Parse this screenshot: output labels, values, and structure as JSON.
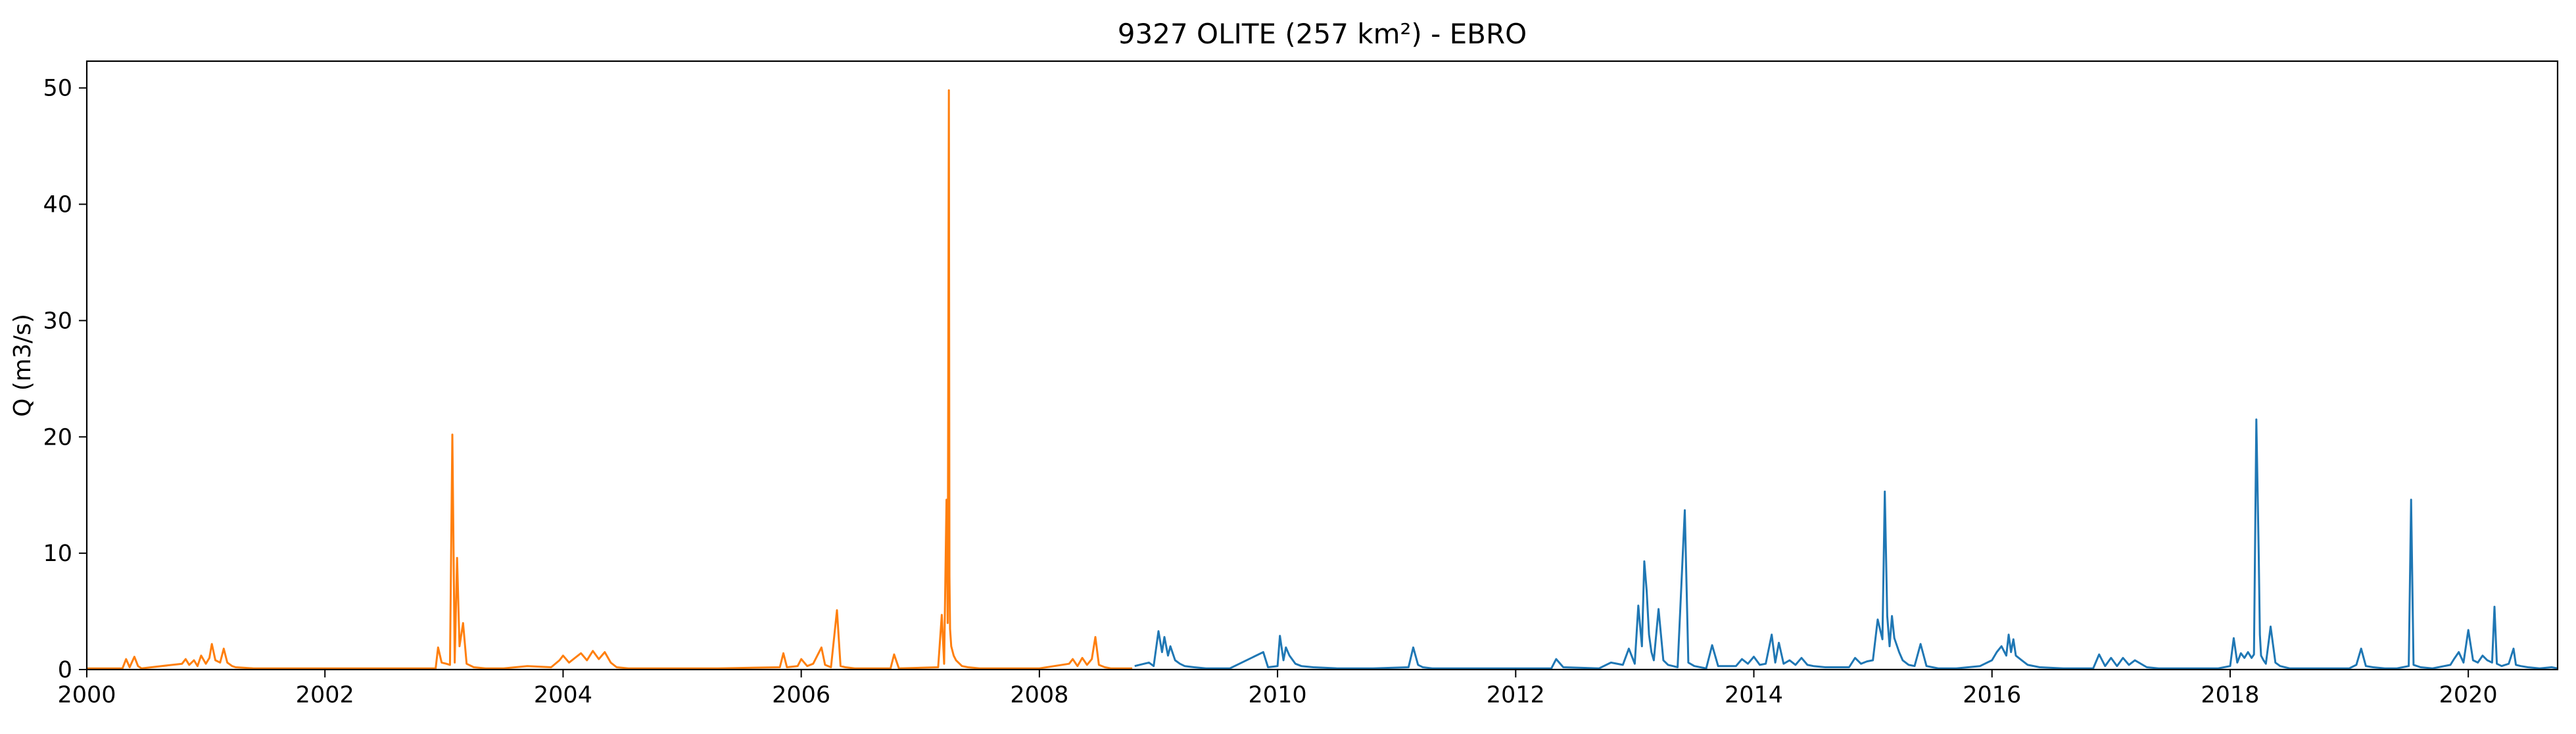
{
  "chart_data": {
    "type": "line",
    "title": "9327 OLITE (257 km²) - EBRO",
    "xlabel": "",
    "ylabel": "Q (m3/s)",
    "xlim": [
      2000.0,
      2020.75
    ],
    "ylim": [
      0,
      52.3
    ],
    "grid": false,
    "legend": "none",
    "x_ticks": [
      {
        "value": 2000,
        "label": "2000"
      },
      {
        "value": 2002,
        "label": "2002"
      },
      {
        "value": 2004,
        "label": "2004"
      },
      {
        "value": 2006,
        "label": "2006"
      },
      {
        "value": 2008,
        "label": "2008"
      },
      {
        "value": 2010,
        "label": "2010"
      },
      {
        "value": 2012,
        "label": "2012"
      },
      {
        "value": 2014,
        "label": "2014"
      },
      {
        "value": 2016,
        "label": "2016"
      },
      {
        "value": 2018,
        "label": "2018"
      },
      {
        "value": 2020,
        "label": "2020"
      }
    ],
    "y_ticks": [
      {
        "value": 0,
        "label": "0"
      },
      {
        "value": 10,
        "label": "10"
      },
      {
        "value": 20,
        "label": "20"
      },
      {
        "value": 30,
        "label": "30"
      },
      {
        "value": 40,
        "label": "40"
      },
      {
        "value": 50,
        "label": "50"
      }
    ],
    "series": [
      {
        "color": "#ff7f0e",
        "x": [
          2000.0,
          2000.3,
          2000.33,
          2000.36,
          2000.4,
          2000.43,
          2000.46,
          2000.8,
          2000.83,
          2000.86,
          2000.9,
          2000.93,
          2000.96,
          2001.0,
          2001.03,
          2001.05,
          2001.08,
          2001.12,
          2001.15,
          2001.18,
          2001.22,
          2001.25,
          2001.4,
          2001.8,
          2002.4,
          2002.93,
          2002.95,
          2002.98,
          2003.02,
          2003.05,
          2003.07,
          2003.09,
          2003.11,
          2003.13,
          2003.16,
          2003.19,
          2003.25,
          2003.35,
          2003.5,
          2003.7,
          2003.9,
          2003.97,
          2004.0,
          2004.05,
          2004.1,
          2004.15,
          2004.2,
          2004.25,
          2004.3,
          2004.35,
          2004.4,
          2004.45,
          2004.55,
          2005.0,
          2005.3,
          2005.82,
          2005.85,
          2005.88,
          2005.97,
          2006.0,
          2006.05,
          2006.1,
          2006.17,
          2006.2,
          2006.25,
          2006.3,
          2006.33,
          2006.37,
          2006.45,
          2006.6,
          2006.75,
          2006.78,
          2006.82,
          2007.15,
          2007.18,
          2007.2,
          2007.22,
          2007.23,
          2007.24,
          2007.245,
          2007.25,
          2007.26,
          2007.28,
          2007.3,
          2007.35,
          2007.4,
          2007.5,
          2007.6,
          2007.8,
          2008.0,
          2008.25,
          2008.28,
          2008.32,
          2008.36,
          2008.4,
          2008.44,
          2008.47,
          2008.5,
          2008.55,
          2008.6,
          2008.7,
          2008.78
        ],
        "y": [
          0.1,
          0.1,
          0.9,
          0.2,
          1.1,
          0.3,
          0.1,
          0.5,
          0.9,
          0.4,
          0.8,
          0.3,
          1.2,
          0.5,
          1.0,
          2.2,
          0.8,
          0.6,
          1.8,
          0.6,
          0.3,
          0.2,
          0.1,
          0.1,
          0.1,
          0.1,
          1.9,
          0.6,
          0.5,
          0.4,
          20.2,
          0.6,
          9.6,
          2.0,
          4.0,
          0.5,
          0.2,
          0.1,
          0.1,
          0.3,
          0.2,
          0.8,
          1.2,
          0.6,
          1.0,
          1.4,
          0.8,
          1.6,
          0.9,
          1.5,
          0.6,
          0.2,
          0.1,
          0.1,
          0.1,
          0.2,
          1.4,
          0.2,
          0.3,
          0.9,
          0.3,
          0.5,
          1.9,
          0.4,
          0.2,
          5.1,
          0.3,
          0.2,
          0.1,
          0.1,
          0.1,
          1.3,
          0.1,
          0.2,
          4.7,
          0.5,
          14.6,
          4.0,
          49.8,
          8.0,
          3.5,
          2.0,
          1.2,
          0.8,
          0.3,
          0.2,
          0.1,
          0.1,
          0.1,
          0.1,
          0.5,
          0.9,
          0.3,
          1.0,
          0.4,
          0.9,
          2.8,
          0.4,
          0.2,
          0.1,
          0.1,
          0.1
        ]
      },
      {
        "color": "#1f77b4",
        "x": [
          2008.8,
          2008.88,
          2008.92,
          2008.96,
          2009.0,
          2009.03,
          2009.05,
          2009.08,
          2009.1,
          2009.14,
          2009.18,
          2009.22,
          2009.3,
          2009.4,
          2009.6,
          2009.88,
          2009.92,
          2010.0,
          2010.02,
          2010.05,
          2010.07,
          2010.1,
          2010.15,
          2010.2,
          2010.3,
          2010.5,
          2010.8,
          2011.1,
          2011.14,
          2011.18,
          2011.22,
          2011.3,
          2011.8,
          2012.3,
          2012.34,
          2012.4,
          2012.7,
          2012.8,
          2012.9,
          2012.95,
          2013.0,
          2013.03,
          2013.06,
          2013.08,
          2013.1,
          2013.12,
          2013.14,
          2013.16,
          2013.2,
          2013.24,
          2013.28,
          2013.32,
          2013.36,
          2013.42,
          2013.45,
          2013.5,
          2013.6,
          2013.65,
          2013.7,
          2013.85,
          2013.9,
          2013.95,
          2014.0,
          2014.05,
          2014.1,
          2014.15,
          2014.18,
          2014.21,
          2014.25,
          2014.3,
          2014.35,
          2014.4,
          2014.45,
          2014.5,
          2014.6,
          2014.8,
          2014.85,
          2014.9,
          2014.95,
          2015.0,
          2015.04,
          2015.08,
          2015.1,
          2015.12,
          2015.14,
          2015.16,
          2015.18,
          2015.22,
          2015.25,
          2015.3,
          2015.35,
          2015.4,
          2015.45,
          2015.5,
          2015.55,
          2015.7,
          2015.8,
          2015.9,
          2016.0,
          2016.04,
          2016.08,
          2016.12,
          2016.14,
          2016.16,
          2016.18,
          2016.2,
          2016.25,
          2016.3,
          2016.4,
          2016.6,
          2016.85,
          2016.9,
          2016.95,
          2017.0,
          2017.05,
          2017.1,
          2017.15,
          2017.2,
          2017.3,
          2017.4,
          2017.6,
          2017.9,
          2018.0,
          2018.03,
          2018.06,
          2018.09,
          2018.12,
          2018.15,
          2018.18,
          2018.2,
          2018.22,
          2018.24,
          2018.25,
          2018.26,
          2018.28,
          2018.3,
          2018.34,
          2018.38,
          2018.42,
          2018.46,
          2018.5,
          2018.6,
          2018.8,
          2019.0,
          2019.06,
          2019.1,
          2019.14,
          2019.2,
          2019.3,
          2019.4,
          2019.5,
          2019.52,
          2019.54,
          2019.6,
          2019.7,
          2019.85,
          2019.88,
          2019.92,
          2019.96,
          2020.0,
          2020.04,
          2020.08,
          2020.12,
          2020.16,
          2020.2,
          2020.22,
          2020.24,
          2020.28,
          2020.34,
          2020.38,
          2020.4,
          2020.44,
          2020.5,
          2020.6,
          2020.7,
          2020.75
        ],
        "y": [
          0.3,
          0.5,
          0.6,
          0.3,
          3.3,
          1.5,
          2.8,
          1.2,
          2.0,
          0.8,
          0.5,
          0.3,
          0.2,
          0.1,
          0.1,
          1.5,
          0.2,
          0.3,
          2.9,
          0.8,
          1.9,
          1.2,
          0.5,
          0.3,
          0.2,
          0.1,
          0.1,
          0.2,
          1.9,
          0.4,
          0.2,
          0.1,
          0.1,
          0.1,
          0.9,
          0.2,
          0.1,
          0.6,
          0.4,
          1.8,
          0.5,
          5.5,
          2.0,
          9.3,
          6.8,
          3.0,
          1.5,
          0.8,
          5.2,
          0.8,
          0.4,
          0.3,
          0.2,
          13.7,
          0.6,
          0.3,
          0.1,
          2.1,
          0.3,
          0.3,
          0.9,
          0.5,
          1.1,
          0.4,
          0.5,
          3.0,
          0.6,
          2.3,
          0.5,
          0.8,
          0.4,
          1.0,
          0.4,
          0.3,
          0.2,
          0.2,
          1.0,
          0.5,
          0.7,
          0.8,
          4.3,
          2.6,
          15.3,
          4.6,
          2.0,
          4.6,
          2.7,
          1.5,
          0.8,
          0.4,
          0.3,
          2.2,
          0.3,
          0.2,
          0.1,
          0.1,
          0.2,
          0.3,
          0.8,
          1.5,
          2.0,
          1.2,
          3.0,
          1.5,
          2.6,
          1.2,
          0.8,
          0.4,
          0.2,
          0.1,
          0.1,
          1.3,
          0.3,
          1.0,
          0.3,
          1.0,
          0.4,
          0.8,
          0.2,
          0.1,
          0.1,
          0.1,
          0.3,
          2.7,
          0.6,
          1.4,
          1.0,
          1.5,
          1.0,
          1.3,
          21.5,
          10.0,
          3.0,
          1.2,
          0.8,
          0.5,
          3.7,
          0.6,
          0.3,
          0.2,
          0.1,
          0.1,
          0.1,
          0.1,
          0.4,
          1.8,
          0.3,
          0.2,
          0.1,
          0.1,
          0.3,
          14.6,
          0.4,
          0.2,
          0.1,
          0.4,
          0.9,
          1.5,
          0.6,
          3.4,
          0.8,
          0.6,
          1.2,
          0.8,
          0.6,
          5.4,
          0.5,
          0.3,
          0.5,
          1.8,
          0.4,
          0.3,
          0.2,
          0.1,
          0.2,
          0.1
        ]
      }
    ]
  }
}
